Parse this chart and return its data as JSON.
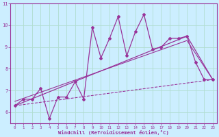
{
  "xlabel": "Windchill (Refroidissement éolien,°C)",
  "background_color": "#cceeff",
  "grid_color": "#b0ddd0",
  "line_color": "#993399",
  "xlim": [
    -0.5,
    23.5
  ],
  "ylim": [
    5.5,
    11.0
  ],
  "xticks": [
    0,
    1,
    2,
    3,
    4,
    5,
    6,
    7,
    8,
    9,
    10,
    11,
    12,
    13,
    14,
    15,
    16,
    17,
    18,
    19,
    20,
    21,
    22,
    23
  ],
  "yticks": [
    6,
    7,
    8,
    9,
    10,
    11
  ],
  "hours": [
    0,
    1,
    2,
    3,
    4,
    5,
    6,
    7,
    8,
    9,
    10,
    11,
    12,
    13,
    14,
    15,
    16,
    17,
    18,
    19,
    20,
    21,
    22,
    23
  ],
  "values": [
    6.3,
    6.6,
    6.6,
    7.1,
    5.7,
    6.7,
    6.7,
    7.4,
    6.6,
    9.9,
    8.5,
    9.4,
    10.4,
    8.6,
    9.7,
    10.5,
    8.9,
    9.0,
    9.4,
    9.4,
    9.5,
    8.3,
    7.5,
    7.5
  ],
  "lower_line_x": [
    0,
    23
  ],
  "lower_line_y": [
    6.3,
    7.5
  ],
  "upper_line_x": [
    0,
    20,
    23
  ],
  "upper_line_y": [
    6.3,
    9.5,
    7.5
  ],
  "middle_line_x": [
    0,
    20,
    23
  ],
  "middle_line_y": [
    6.5,
    9.3,
    7.5
  ]
}
